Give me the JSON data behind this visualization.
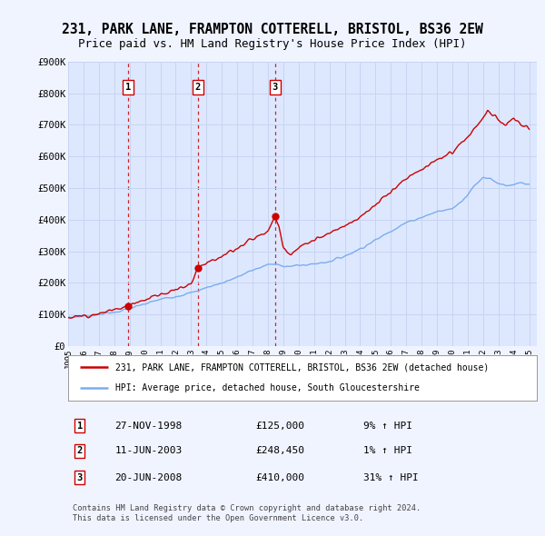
{
  "title": "231, PARK LANE, FRAMPTON COTTERELL, BRISTOL, BS36 2EW",
  "subtitle": "Price paid vs. HM Land Registry's House Price Index (HPI)",
  "ylim": [
    0,
    900000
  ],
  "yticks": [
    0,
    100000,
    200000,
    300000,
    400000,
    500000,
    600000,
    700000,
    800000,
    900000
  ],
  "ytick_labels": [
    "£0",
    "£100K",
    "£200K",
    "£300K",
    "£400K",
    "£500K",
    "£600K",
    "£700K",
    "£800K",
    "£900K"
  ],
  "xlim_start": 1995.0,
  "xlim_end": 2025.5,
  "background_color": "#f0f4ff",
  "plot_bg_color": "#dde8ff",
  "grid_color": "#c8d4f0",
  "sale_color": "#cc0000",
  "hpi_color": "#7aadee",
  "vline_color": "#cc0000",
  "sales": [
    {
      "year": 1998.92,
      "price": 125000,
      "label": "1"
    },
    {
      "year": 2003.44,
      "price": 248450,
      "label": "2"
    },
    {
      "year": 2008.46,
      "price": 410000,
      "label": "3"
    }
  ],
  "legend_entries": [
    "231, PARK LANE, FRAMPTON COTTERELL, BRISTOL, BS36 2EW (detached house)",
    "HPI: Average price, detached house, South Gloucestershire"
  ],
  "table_rows": [
    {
      "num": "1",
      "date": "27-NOV-1998",
      "price": "£125,000",
      "change": "9% ↑ HPI"
    },
    {
      "num": "2",
      "date": "11-JUN-2003",
      "price": "£248,450",
      "change": "1% ↑ HPI"
    },
    {
      "num": "3",
      "date": "20-JUN-2008",
      "price": "£410,000",
      "change": "31% ↑ HPI"
    }
  ],
  "footer": "Contains HM Land Registry data © Crown copyright and database right 2024.\nThis data is licensed under the Open Government Licence v3.0.",
  "xtick_years": [
    1995,
    1996,
    1997,
    1998,
    1999,
    2000,
    2001,
    2002,
    2003,
    2004,
    2005,
    2006,
    2007,
    2008,
    2009,
    2010,
    2011,
    2012,
    2013,
    2014,
    2015,
    2016,
    2017,
    2018,
    2019,
    2020,
    2021,
    2022,
    2023,
    2024,
    2025
  ]
}
